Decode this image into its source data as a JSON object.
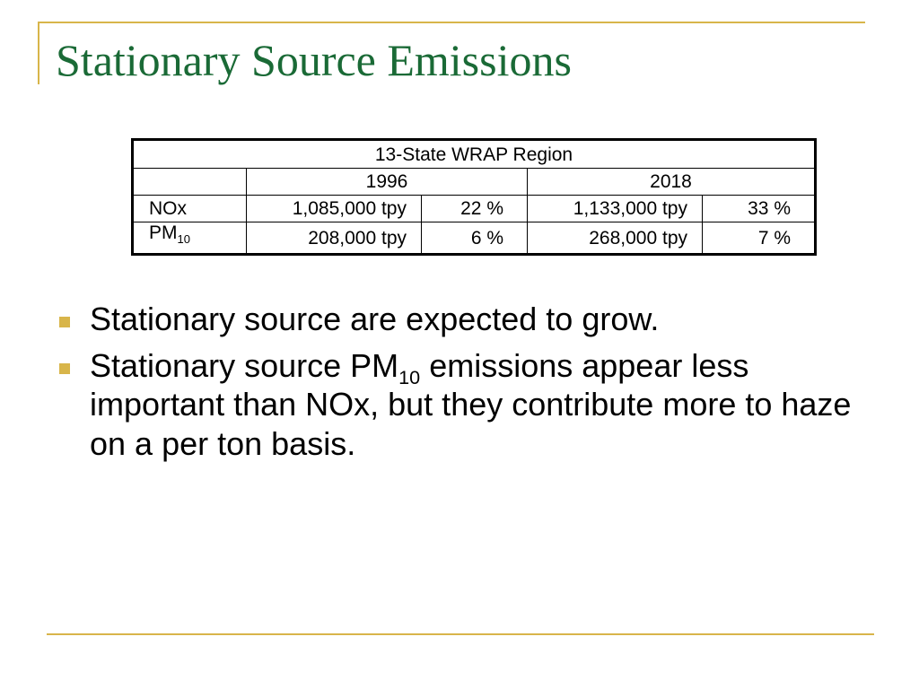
{
  "slide": {
    "title": "Stationary Source Emissions"
  },
  "table": {
    "region_header": "13-State WRAP Region",
    "year_headers": [
      "1996",
      "2018"
    ],
    "rows": [
      {
        "pollutant": "NOx",
        "pollutant_sub": "",
        "tpy_1996": "1,085,000 tpy",
        "pct_1996": "22 %",
        "tpy_2018": "1,133,000 tpy",
        "pct_2018": "33 %"
      },
      {
        "pollutant": "PM",
        "pollutant_sub": "10",
        "tpy_1996": "208,000 tpy",
        "pct_1996": "6 %",
        "tpy_2018": "268,000 tpy",
        "pct_2018": "7 %"
      }
    ]
  },
  "bullets": [
    {
      "text": "Stationary source are expected to grow."
    },
    {
      "text_before": "Stationary source PM",
      "subscript": "10",
      "text_after": " emissions appear less important than NOx, but they contribute more to haze on a per ton basis."
    }
  ],
  "colors": {
    "title": "#1a6a36",
    "accent": "#d8b54a",
    "text": "#000000"
  }
}
